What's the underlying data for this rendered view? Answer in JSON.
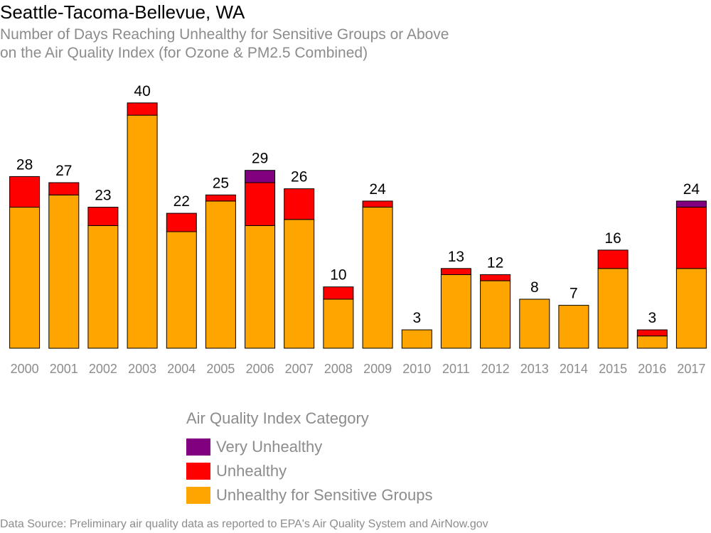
{
  "header": {
    "title": "Seattle-Tacoma-Bellevue, WA",
    "subtitle_line1": "Number of Days Reaching Unhealthy for Sensitive Groups or Above",
    "subtitle_line2": "on the Air Quality Index (for Ozone & PM2.5 Combined)"
  },
  "legend": {
    "title": "Air Quality Index Category",
    "items": [
      {
        "label": "Very Unhealthy",
        "color": "#800080"
      },
      {
        "label": "Unhealthy",
        "color": "#ff0000"
      },
      {
        "label": "Unhealthy for Sensitive Groups",
        "color": "#ffa500"
      }
    ]
  },
  "footer": {
    "source": "Data Source: Preliminary air quality data as reported to EPA's Air Quality System and AirNow.gov"
  },
  "chart_data": {
    "type": "bar",
    "stacked": true,
    "categories": [
      "2000",
      "2001",
      "2002",
      "2003",
      "2004",
      "2005",
      "2006",
      "2007",
      "2008",
      "2009",
      "2010",
      "2011",
      "2012",
      "2013",
      "2014",
      "2015",
      "2016",
      "2017"
    ],
    "series": [
      {
        "name": "Unhealthy for Sensitive Groups",
        "color": "#ffa500",
        "values": [
          23,
          25,
          20,
          38,
          19,
          24,
          20,
          21,
          8,
          23,
          3,
          12,
          11,
          8,
          7,
          13,
          2,
          13
        ]
      },
      {
        "name": "Unhealthy",
        "color": "#ff0000",
        "values": [
          5,
          2,
          3,
          2,
          3,
          1,
          7,
          5,
          2,
          1,
          0,
          1,
          1,
          0,
          0,
          3,
          1,
          10
        ]
      },
      {
        "name": "Very Unhealthy",
        "color": "#800080",
        "values": [
          0,
          0,
          0,
          0,
          0,
          0,
          2,
          0,
          0,
          0,
          0,
          0,
          0,
          0,
          0,
          0,
          0,
          1
        ]
      }
    ],
    "totals": [
      28,
      27,
      23,
      40,
      22,
      25,
      29,
      26,
      10,
      24,
      3,
      13,
      12,
      8,
      7,
      16,
      3,
      24
    ],
    "ylim": [
      0,
      40
    ],
    "grid": false
  }
}
